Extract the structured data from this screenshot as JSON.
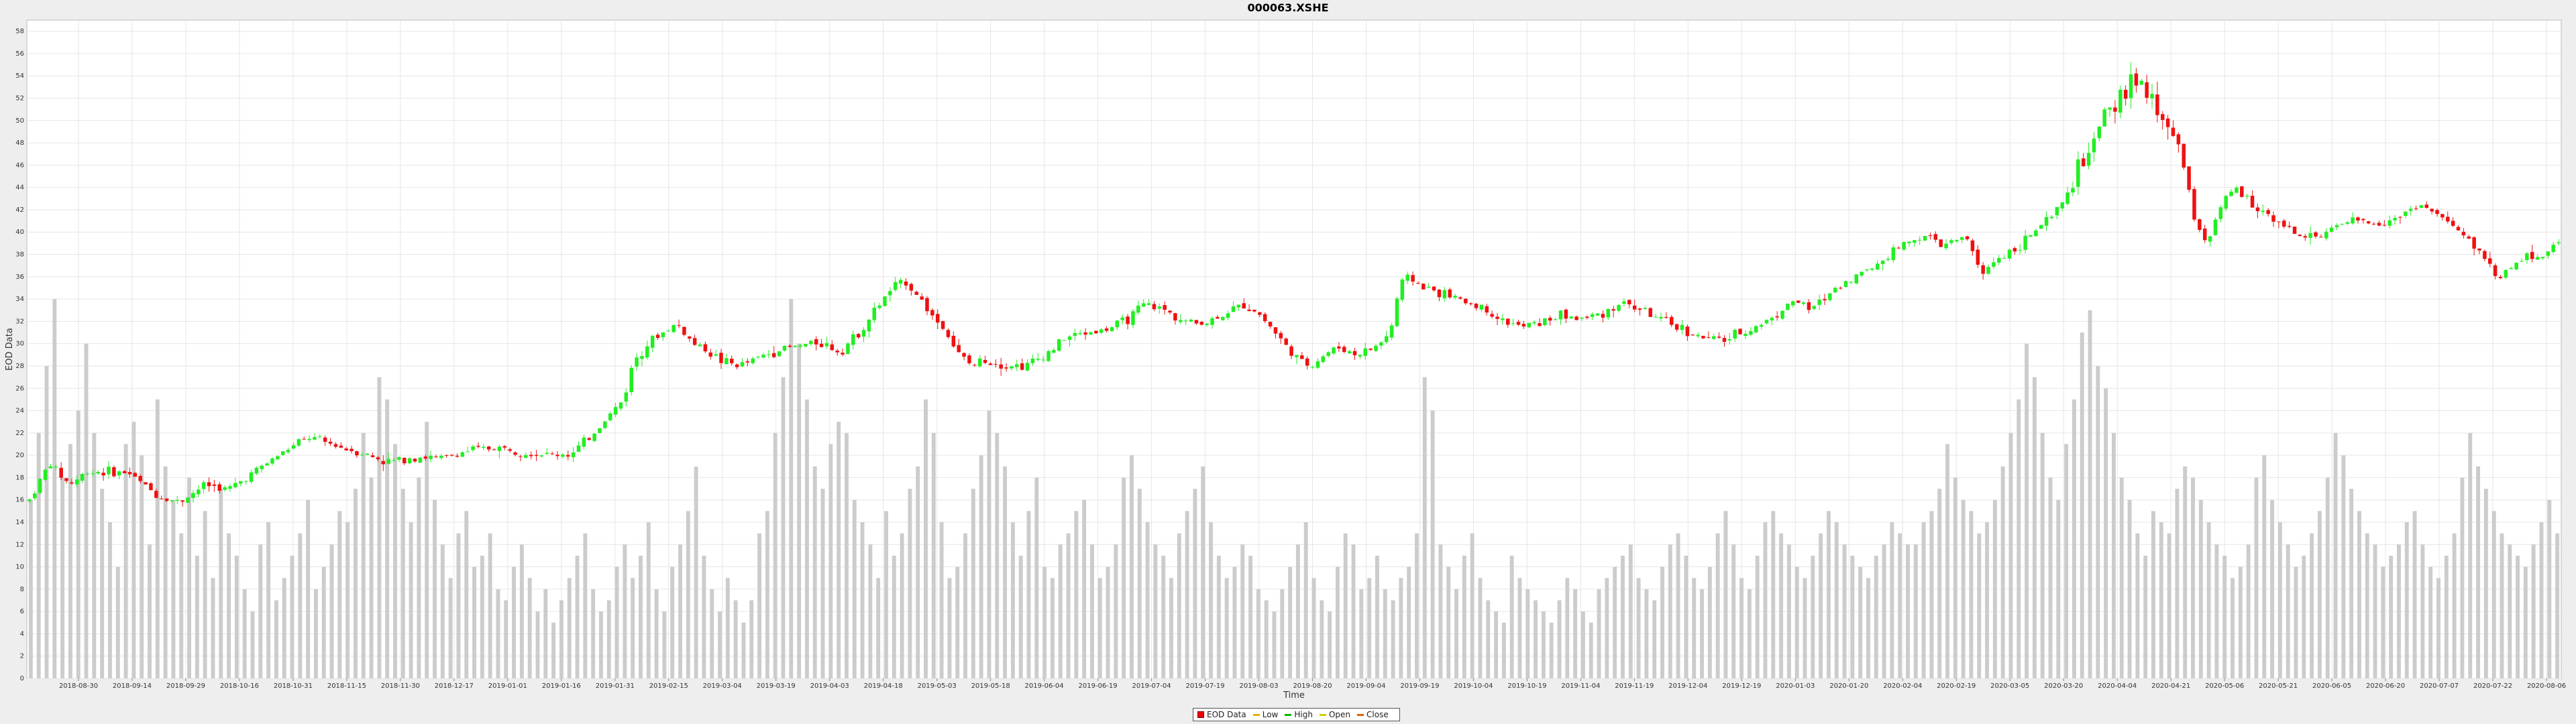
{
  "chart_data": {
    "type": "candlestick",
    "title": "000063.XSHE",
    "xlabel": "Time",
    "ylabel": "EOD Data",
    "ylim": [
      0,
      59
    ],
    "yticks": [
      0,
      2,
      4,
      6,
      8,
      10,
      12,
      14,
      16,
      18,
      20,
      22,
      24,
      26,
      28,
      30,
      32,
      34,
      36,
      38,
      40,
      42,
      44,
      46,
      48,
      50,
      52,
      54,
      56,
      58
    ],
    "xticks": [
      "2018-08-30",
      "2018-09-14",
      "2018-09-29",
      "2018-10-16",
      "2018-10-31",
      "2018-11-15",
      "2018-11-30",
      "2018-12-17",
      "2019-01-01",
      "2019-01-16",
      "2019-01-31",
      "2019-02-15",
      "2019-03-04",
      "2019-03-19",
      "2019-04-03",
      "2019-04-18",
      "2019-05-03",
      "2019-05-18",
      "2019-06-04",
      "2019-06-19",
      "2019-07-04",
      "2019-07-19",
      "2019-08-03",
      "2019-08-20",
      "2019-09-04",
      "2019-09-19",
      "2019-10-04",
      "2019-10-19",
      "2019-11-04",
      "2019-11-19",
      "2019-12-04",
      "2019-12-19",
      "2020-01-03",
      "2020-01-20",
      "2020-02-04",
      "2020-02-19",
      "2020-03-05",
      "2020-03-20",
      "2020-04-04",
      "2020-04-21",
      "2020-05-06",
      "2020-05-21",
      "2020-06-05",
      "2020-06-20",
      "2020-07-07",
      "2020-07-22",
      "2020-08-06"
    ],
    "grid": true,
    "legend_position": "bottom",
    "close_anchors": [
      [
        0,
        16.0
      ],
      [
        30,
        19.3
      ],
      [
        60,
        17.4
      ],
      [
        90,
        18.6
      ],
      [
        150,
        18.4
      ],
      [
        195,
        16.3
      ],
      [
        225,
        15.8
      ],
      [
        265,
        17.4
      ],
      [
        300,
        16.9
      ],
      [
        340,
        18.6
      ],
      [
        385,
        20.4
      ],
      [
        420,
        21.6
      ],
      [
        460,
        20.9
      ],
      [
        500,
        20.2
      ],
      [
        540,
        19.4
      ],
      [
        580,
        19.9
      ],
      [
        620,
        19.7
      ],
      [
        660,
        20.4
      ],
      [
        700,
        20.7
      ],
      [
        740,
        20.4
      ],
      [
        780,
        20.0
      ],
      [
        820,
        20.2
      ],
      [
        850,
        22.0
      ],
      [
        870,
        23.4
      ],
      [
        895,
        25.0
      ],
      [
        910,
        28.5
      ],
      [
        930,
        30.0
      ],
      [
        950,
        30.8
      ],
      [
        975,
        31.8
      ],
      [
        1000,
        30.0
      ],
      [
        1020,
        29.5
      ],
      [
        1040,
        28.5
      ],
      [
        1070,
        28.0
      ],
      [
        1100,
        28.8
      ],
      [
        1130,
        29.5
      ],
      [
        1160,
        29.8
      ],
      [
        1190,
        30.2
      ],
      [
        1220,
        29.3
      ],
      [
        1250,
        31.0
      ],
      [
        1280,
        33.5
      ],
      [
        1300,
        35.0
      ],
      [
        1320,
        35.6
      ],
      [
        1340,
        34.2
      ],
      [
        1360,
        32.5
      ],
      [
        1380,
        31.2
      ],
      [
        1400,
        29.0
      ],
      [
        1420,
        28.0
      ],
      [
        1440,
        28.6
      ],
      [
        1470,
        28.1
      ],
      [
        1500,
        28.0
      ],
      [
        1530,
        29.0
      ],
      [
        1560,
        30.5
      ],
      [
        1590,
        31.0
      ],
      [
        1620,
        31.2
      ],
      [
        1650,
        32.0
      ],
      [
        1680,
        33.5
      ],
      [
        1710,
        33.0
      ],
      [
        1740,
        32.0
      ],
      [
        1770,
        31.8
      ],
      [
        1800,
        32.7
      ],
      [
        1830,
        33.5
      ],
      [
        1850,
        32.8
      ],
      [
        1870,
        31.5
      ],
      [
        1890,
        30.0
      ],
      [
        1910,
        28.6
      ],
      [
        1930,
        28.0
      ],
      [
        1950,
        29.0
      ],
      [
        1970,
        29.7
      ],
      [
        2000,
        29.0
      ],
      [
        2030,
        29.8
      ],
      [
        2050,
        31.0
      ],
      [
        2065,
        35.5
      ],
      [
        2080,
        36.0
      ],
      [
        2100,
        35.0
      ],
      [
        2130,
        34.5
      ],
      [
        2160,
        33.8
      ],
      [
        2190,
        33.2
      ],
      [
        2220,
        32.0
      ],
      [
        2250,
        31.5
      ],
      [
        2280,
        32.0
      ],
      [
        2310,
        32.6
      ],
      [
        2340,
        32.2
      ],
      [
        2370,
        32.8
      ],
      [
        2400,
        33.7
      ],
      [
        2430,
        33.0
      ],
      [
        2460,
        32.0
      ],
      [
        2490,
        31.3
      ],
      [
        2520,
        30.5
      ],
      [
        2550,
        30.3
      ],
      [
        2580,
        31.0
      ],
      [
        2610,
        31.8
      ],
      [
        2640,
        33.0
      ],
      [
        2660,
        34.0
      ],
      [
        2680,
        33.0
      ],
      [
        2700,
        33.8
      ],
      [
        2720,
        35.0
      ],
      [
        2750,
        36.0
      ],
      [
        2780,
        37.0
      ],
      [
        2810,
        38.5
      ],
      [
        2840,
        39.5
      ],
      [
        2860,
        39.6
      ],
      [
        2880,
        38.8
      ],
      [
        2920,
        39.5
      ],
      [
        2940,
        36.0
      ],
      [
        2960,
        37.5
      ],
      [
        2990,
        38.5
      ],
      [
        3020,
        40.0
      ],
      [
        3050,
        41.5
      ],
      [
        3070,
        43.5
      ],
      [
        3090,
        46.0
      ],
      [
        3110,
        48.0
      ],
      [
        3130,
        50.5
      ],
      [
        3150,
        52.0
      ],
      [
        3170,
        54.0
      ],
      [
        3190,
        52.0
      ],
      [
        3210,
        50.5
      ],
      [
        3230,
        49.0
      ],
      [
        3245,
        46.0
      ],
      [
        3260,
        41.5
      ],
      [
        3280,
        39.0
      ],
      [
        3300,
        42.0
      ],
      [
        3320,
        44.0
      ],
      [
        3340,
        43.0
      ],
      [
        3360,
        42.0
      ],
      [
        3390,
        41.0
      ],
      [
        3420,
        39.5
      ],
      [
        3450,
        39.8
      ],
      [
        3480,
        40.5
      ],
      [
        3510,
        41.0
      ],
      [
        3540,
        40.7
      ],
      [
        3570,
        41.5
      ],
      [
        3600,
        42.5
      ],
      [
        3630,
        41.5
      ],
      [
        3660,
        40.0
      ],
      [
        3690,
        38.5
      ],
      [
        3710,
        36.5
      ],
      [
        3720,
        36.0
      ],
      [
        3740,
        37.0
      ],
      [
        3760,
        37.8
      ],
      [
        3790,
        38.0
      ],
      [
        3810,
        39.0
      ]
    ],
    "volume_heights": [
      16,
      22,
      28,
      34,
      18,
      21,
      24,
      30,
      22,
      17,
      14,
      10,
      21,
      23,
      20,
      12,
      25,
      19,
      16,
      13,
      18,
      11,
      15,
      9,
      17,
      13,
      11,
      8,
      6,
      12,
      14,
      7,
      9,
      11,
      13,
      16,
      8,
      10,
      12,
      15,
      14,
      17,
      22,
      18,
      27,
      25,
      21,
      17,
      14,
      18,
      23,
      16,
      12,
      9,
      13,
      15,
      10,
      11,
      13,
      8,
      7,
      10,
      12,
      9,
      6,
      8,
      5,
      7,
      9,
      11,
      13,
      8,
      6,
      7,
      10,
      12,
      9,
      11,
      14,
      8,
      6,
      10,
      12,
      15,
      19,
      11,
      8,
      6,
      9,
      7,
      5,
      7,
      13,
      15,
      22,
      27,
      34,
      30,
      25,
      19,
      17,
      21,
      23,
      22,
      16,
      14,
      12,
      9,
      15,
      11,
      13,
      17,
      19,
      25,
      22,
      14,
      9,
      10,
      13,
      17,
      20,
      24,
      22,
      19,
      14,
      11,
      15,
      18,
      10,
      9,
      12,
      13,
      15,
      16,
      12,
      9,
      10,
      12,
      18,
      20,
      17,
      14,
      12,
      11,
      9,
      13,
      15,
      17,
      19,
      14,
      11,
      9,
      10,
      12,
      11,
      8,
      7,
      6,
      8,
      10,
      12,
      14,
      9,
      7,
      6,
      10,
      13,
      12,
      8,
      9,
      11,
      8,
      7,
      9,
      10,
      13,
      27,
      24,
      12,
      10,
      8,
      11,
      13,
      9,
      7,
      6,
      5,
      11,
      9,
      8,
      7,
      6,
      5,
      7,
      9,
      8,
      6,
      5,
      8,
      9,
      10,
      11,
      12,
      9,
      8,
      7,
      10,
      12,
      13,
      11,
      9,
      8,
      10,
      13,
      15,
      12,
      9,
      8,
      11,
      14,
      15,
      13,
      12,
      10,
      9,
      11,
      13,
      15,
      14,
      12,
      11,
      10,
      9,
      11,
      12,
      14,
      13,
      12,
      12,
      14,
      15,
      17,
      21,
      18,
      16,
      15,
      13,
      14,
      16,
      19,
      22,
      25,
      30,
      27,
      22,
      18,
      16,
      21,
      25,
      31,
      33,
      28,
      26,
      22,
      18,
      16,
      13,
      11,
      15,
      14,
      13,
      17,
      19,
      18,
      16,
      14,
      12,
      11,
      9,
      10,
      12,
      18,
      20,
      16,
      14,
      12,
      10,
      11,
      13,
      15,
      18,
      22,
      20,
      17,
      15,
      13,
      12,
      10,
      11,
      12,
      14,
      15,
      12,
      10,
      9,
      11,
      13,
      18,
      22,
      19,
      17,
      15,
      13,
      12,
      11,
      10,
      12,
      14,
      16,
      13
    ]
  },
  "legend": {
    "items": [
      {
        "label": "EOD Data",
        "color": "#ee0000",
        "kind": "box"
      },
      {
        "label": "Low",
        "color": "#e8b000",
        "kind": "line"
      },
      {
        "label": "High",
        "color": "#00bb00",
        "kind": "line"
      },
      {
        "label": "Open",
        "color": "#d0d000",
        "kind": "line"
      },
      {
        "label": "Close",
        "color": "#e06000",
        "kind": "line"
      }
    ]
  },
  "colors": {
    "up": "#22ee22",
    "down": "#ee1111",
    "volume": "#cccccc",
    "grid": "#e6e6e6",
    "background": "#ffffff",
    "frame": "#eeeeee"
  }
}
